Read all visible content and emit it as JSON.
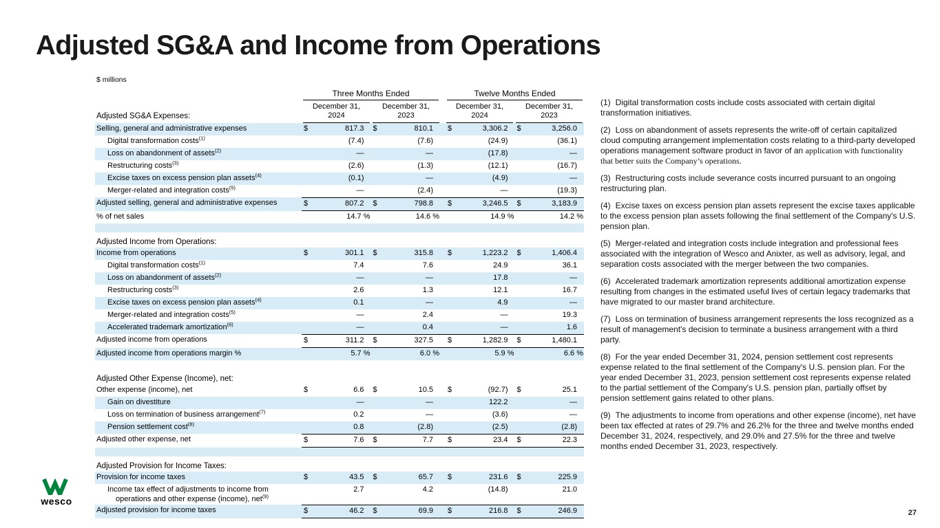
{
  "slide": {
    "title": "Adjusted SG&A and Income from Operations",
    "page_number": "27",
    "logo_text": "wesco"
  },
  "table": {
    "units_label": "$ millions",
    "currency": "$",
    "group_headers": [
      "Three Months Ended",
      "Twelve Months Ended"
    ],
    "col_headers": [
      {
        "l1": "December 31,",
        "l2": "2024"
      },
      {
        "l1": "December 31,",
        "l2": "2023"
      },
      {
        "l1": "December 31,",
        "l2": "2024"
      },
      {
        "l1": "December 31,",
        "l2": "2023"
      }
    ],
    "first_section_label": "Adjusted SG&A Expenses:",
    "rows": [
      {
        "label": "Selling, general and administrative expenses",
        "dollar": true,
        "values": [
          "817.3",
          "810.1",
          "3,306.2",
          "3,256.0"
        ],
        "shaded": true
      },
      {
        "label": "Digital transformation costs",
        "sup": "(1)",
        "indent": true,
        "values": [
          "(7.4)",
          "(7.6)",
          "(24.9)",
          "(36.1)"
        ]
      },
      {
        "label": "Loss on abandonment of assets",
        "sup": "(2)",
        "indent": true,
        "values": [
          "—",
          "—",
          "(17.8)",
          "—"
        ],
        "shaded": true
      },
      {
        "label": "Restructuring costs",
        "sup": "(3)",
        "indent": true,
        "values": [
          "(2.6)",
          "(1.3)",
          "(12.1)",
          "(16.7)"
        ]
      },
      {
        "label": "Excise taxes on excess pension plan assets",
        "sup": "(4)",
        "indent": true,
        "values": [
          "(0.1)",
          "—",
          "(4.9)",
          "—"
        ],
        "shaded": true
      },
      {
        "label": "Merger-related and integration costs",
        "sup": "(5)",
        "indent": true,
        "values": [
          "—",
          "(2.4)",
          "—",
          "(19.3)"
        ]
      },
      {
        "label": "Adjusted selling, general and administrative expenses",
        "dollar": true,
        "type": "total",
        "values": [
          "807.2",
          "798.8",
          "3,246.5",
          "3,183.9"
        ],
        "shaded": true
      },
      {
        "label": "% of net sales",
        "type": "percent",
        "values": [
          "14.7 %",
          "14.6 %",
          "14.9 %",
          "14.2 %"
        ]
      },
      {
        "type": "blank",
        "shaded": true
      },
      {
        "label": "Adjusted Income from Operations:",
        "type": "section"
      },
      {
        "label": "Income from operations",
        "dollar": true,
        "values": [
          "301.1",
          "315.8",
          "1,223.2",
          "1,406.4"
        ],
        "shaded": true
      },
      {
        "label": "Digital transformation costs",
        "sup": "(1)",
        "indent": true,
        "values": [
          "7.4",
          "7.6",
          "24.9",
          "36.1"
        ]
      },
      {
        "label": "Loss on abandonment of assets",
        "sup": "(2)",
        "indent": true,
        "values": [
          "—",
          "—",
          "17.8",
          "—"
        ],
        "shaded": true
      },
      {
        "label": "Restructuring costs",
        "sup": "(3)",
        "indent": true,
        "values": [
          "2.6",
          "1.3",
          "12.1",
          "16.7"
        ]
      },
      {
        "label": "Excise taxes on excess pension plan assets",
        "sup": "(4)",
        "indent": true,
        "values": [
          "0.1",
          "—",
          "4.9",
          "—"
        ],
        "shaded": true
      },
      {
        "label": "Merger-related and integration costs",
        "sup": "(5)",
        "indent": true,
        "values": [
          "—",
          "2.4",
          "—",
          "19.3"
        ]
      },
      {
        "label": "Accelerated trademark amortization",
        "sup": "(6)",
        "indent": true,
        "values": [
          "—",
          "0.4",
          "—",
          "1.6"
        ],
        "shaded": true
      },
      {
        "label": "Adjusted income from operations",
        "dollar": true,
        "type": "total",
        "values": [
          "311.2",
          "327.5",
          "1,282.9",
          "1,480.1"
        ]
      },
      {
        "label": "Adjusted income from operations margin %",
        "type": "percent",
        "values": [
          "5.7 %",
          "6.0 %",
          "5.9 %",
          "6.6 %"
        ],
        "shaded": true
      },
      {
        "type": "blank"
      },
      {
        "label": "Adjusted Other Expense (Income), net:",
        "type": "section"
      },
      {
        "label": "Other expense (income), net",
        "dollar": true,
        "values": [
          "6.6",
          "10.5",
          "(92.7)",
          "25.1"
        ]
      },
      {
        "label": "Gain on divestiture",
        "indent": true,
        "values": [
          "—",
          "—",
          "122.2",
          "—"
        ],
        "shaded": true
      },
      {
        "label": "Loss on termination of business arrangement",
        "sup": "(7)",
        "indent": true,
        "values": [
          "0.2",
          "—",
          "(3.6)",
          "—"
        ]
      },
      {
        "label": "Pension settlement cost",
        "sup": "(8)",
        "indent": true,
        "values": [
          "0.8",
          "(2.8)",
          "(2.5)",
          "(2.8)"
        ],
        "shaded": true
      },
      {
        "label": "Adjusted other expense, net",
        "dollar": true,
        "type": "total",
        "values": [
          "7.6",
          "7.7",
          "23.4",
          "22.3"
        ]
      },
      {
        "type": "blank",
        "shaded": true
      },
      {
        "label": "Adjusted Provision for Income Taxes:",
        "type": "section"
      },
      {
        "label": "Provision for income taxes",
        "dollar": true,
        "values": [
          "43.5",
          "65.7",
          "231.6",
          "225.9"
        ],
        "shaded": true
      },
      {
        "label": "Income tax effect of adjustments to income from operations and other expense (income), net",
        "sup": "(9)",
        "indent": true,
        "values": [
          "2.7",
          "4.2",
          "(14.8)",
          "21.0"
        ]
      },
      {
        "label": "Adjusted provision for income taxes",
        "dollar": true,
        "type": "total",
        "values": [
          "46.2",
          "69.9",
          "216.8",
          "246.9"
        ],
        "shaded": true
      }
    ]
  },
  "footnotes": [
    {
      "num": "(1)",
      "text": "Digital transformation costs include costs associated with certain digital transformation initiatives."
    },
    {
      "num": "(2)",
      "text": "Loss on abandonment of assets represents the write-off of certain capitalized cloud computing arrangement implementation costs relating to a third-party developed operations management software product in favor of an",
      "serif_tail": "application with functionality that better suits the Company’s operations."
    },
    {
      "num": "(3)",
      "text": "Restructuring costs include severance costs incurred pursuant to an ongoing restructuring plan."
    },
    {
      "num": "(4)",
      "text": "Excise taxes on excess pension plan assets represent the excise taxes applicable to the excess pension plan assets following the final settlement of the Company's U.S. pension plan."
    },
    {
      "num": "(5)",
      "text": "Merger-related and integration costs include integration and professional fees associated with the integration of Wesco and Anixter, as well as advisory, legal, and separation costs associated with the merger between the two companies."
    },
    {
      "num": "(6)",
      "text": "Accelerated trademark amortization represents additional amortization expense resulting from changes in the estimated useful lives of certain legacy trademarks that have migrated to our master brand architecture."
    },
    {
      "num": "(7)",
      "text": "Loss on termination of business arrangement represents the loss recognized as a result of management's decision to terminate a business arrangement with a third party."
    },
    {
      "num": "(8)",
      "text": "For the year ended December 31, 2024, pension settlement cost represents expense related to the final settlement of the Company's U.S. pension plan. For the year ended December 31, 2023, pension settlement cost represents expense related to the partial settlement of the Company's U.S. pension plan, partially offset by pension settlement gains related to other plans."
    },
    {
      "num": "(9)",
      "text": "The adjustments to income from operations and other expense (income), net have been tax effected at rates of 29.7% and 26.2% for the three and twelve months ended December 31, 2024, respectively, and 29.0% and 27.5% for the three and twelve months ended December 31, 2023, respectively."
    }
  ]
}
